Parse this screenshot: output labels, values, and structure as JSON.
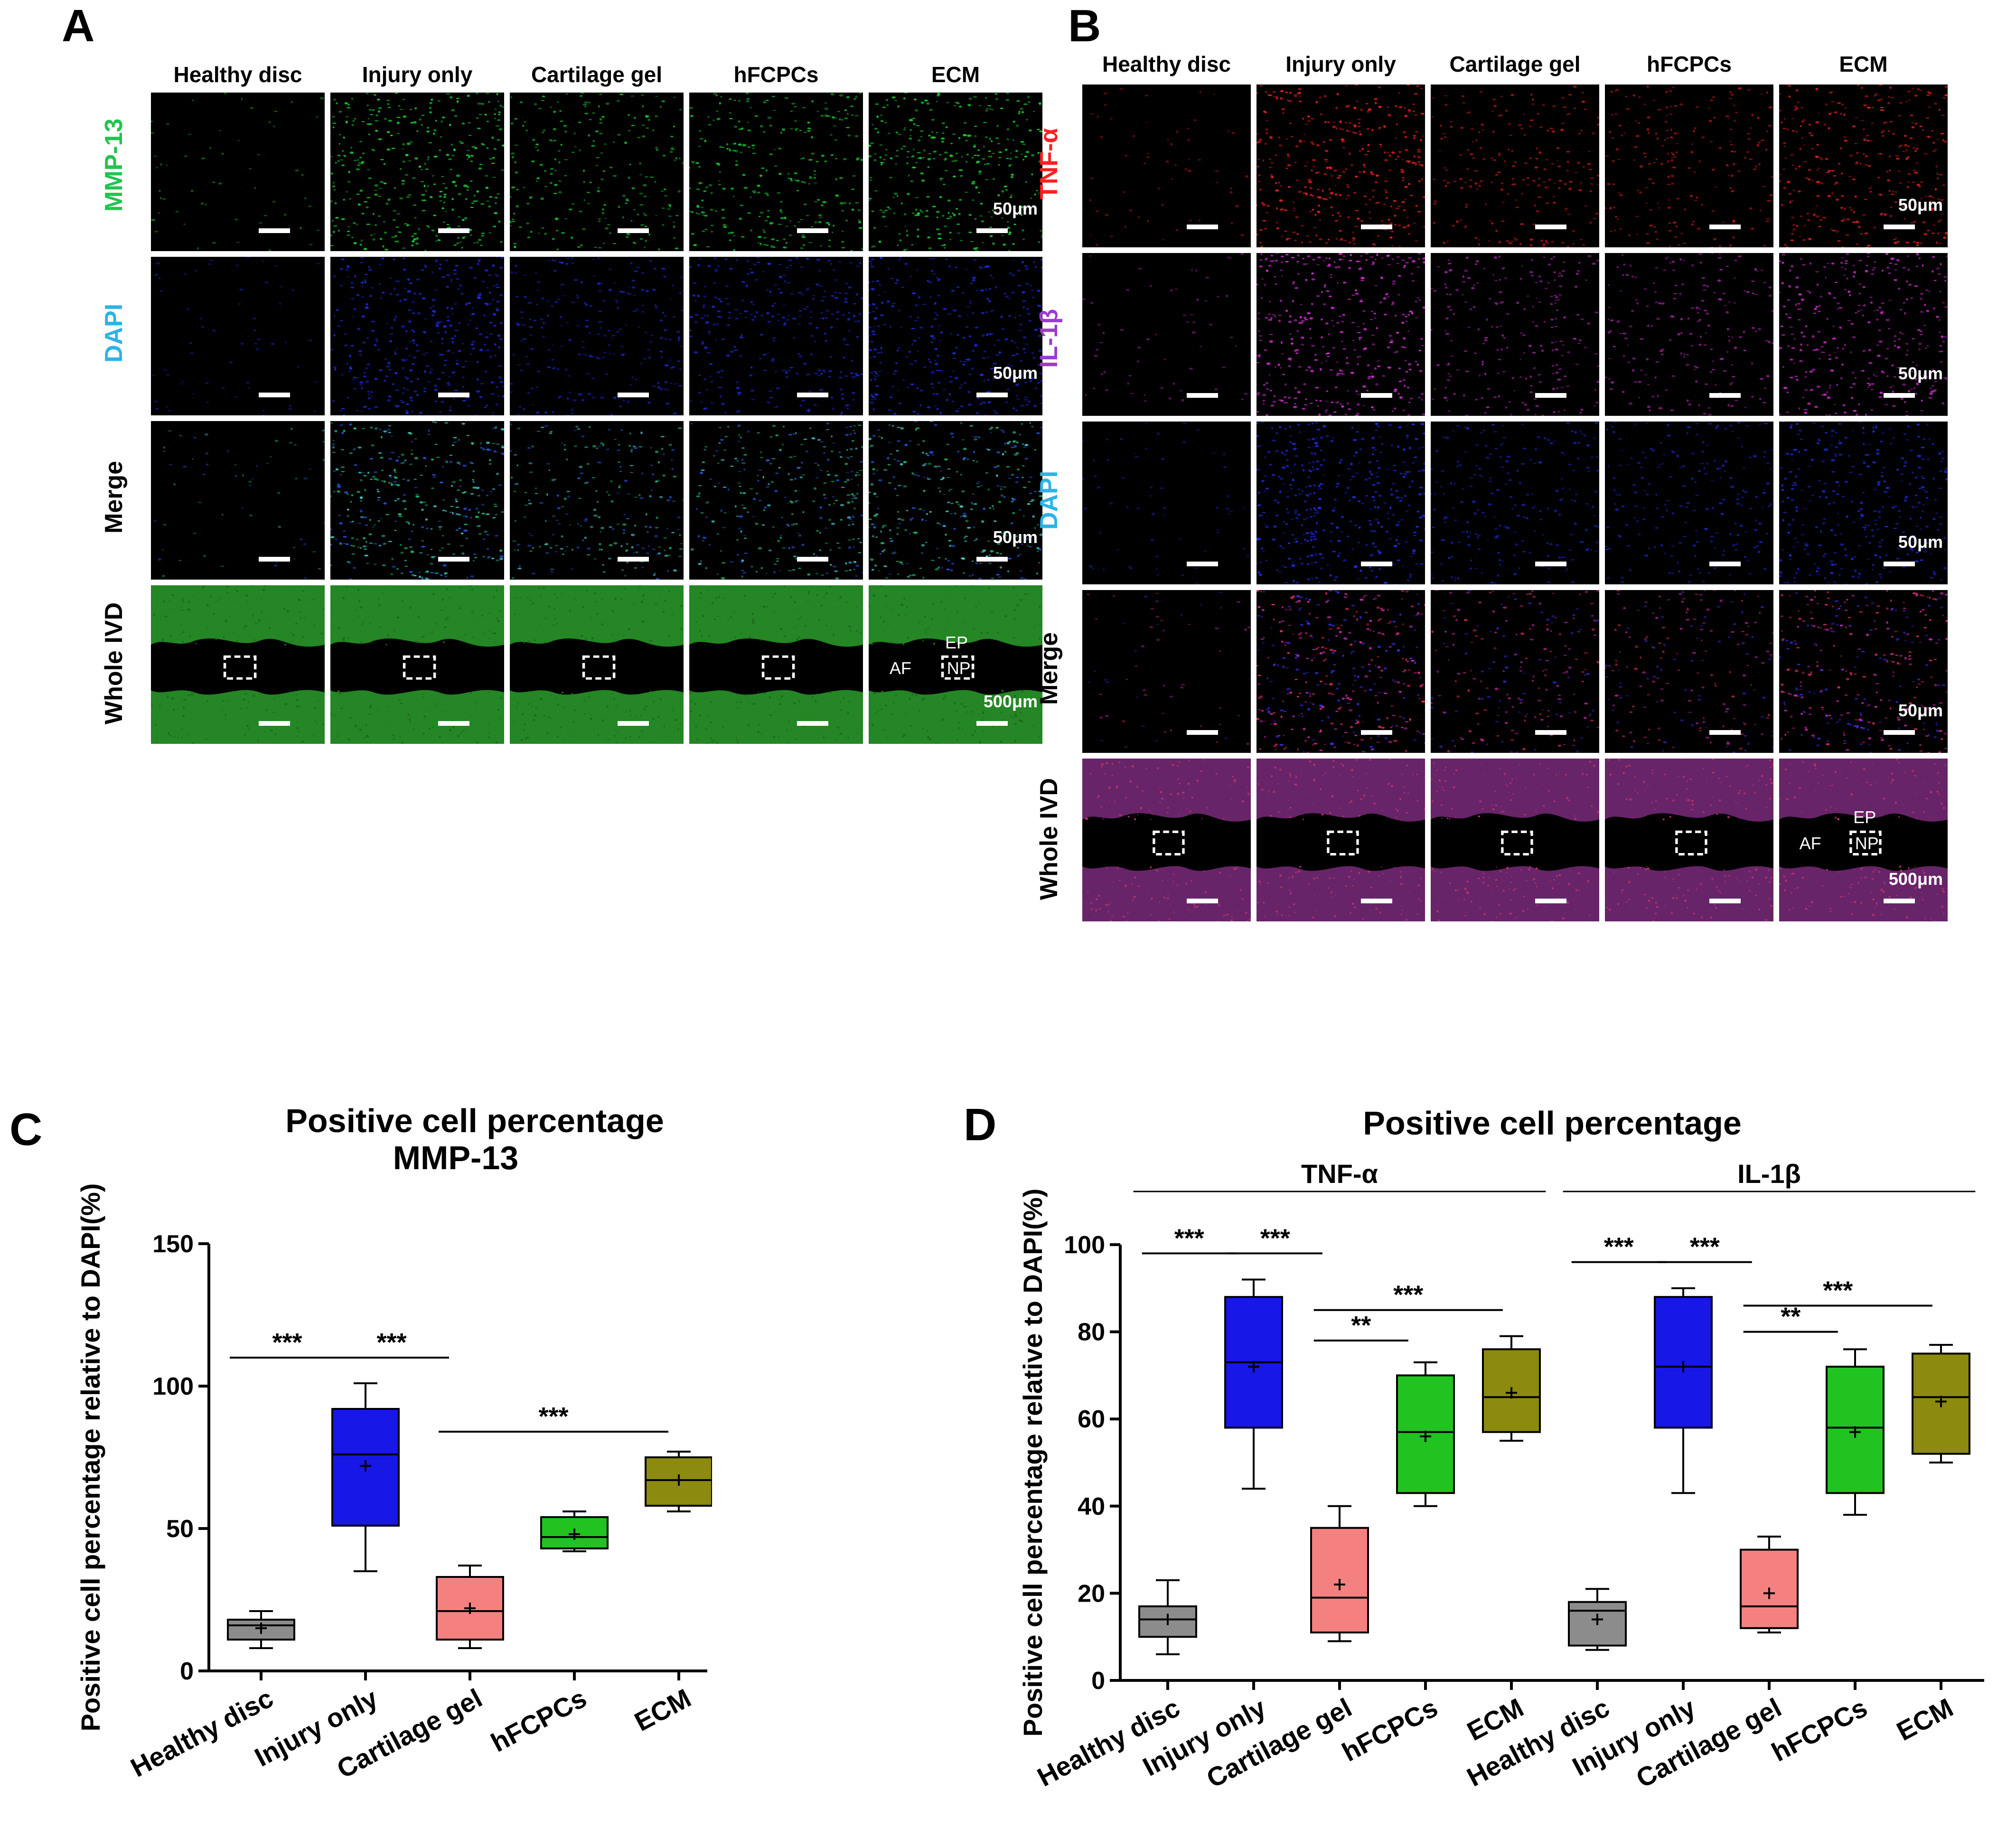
{
  "panel_a": {
    "letter": "A",
    "columns": [
      "Healthy disc",
      "Injury only",
      "Cartilage gel",
      "hFCPCs",
      "ECM"
    ],
    "rows": [
      {
        "label": "MMP-13",
        "color": "#22c34f",
        "scale": "50μm",
        "tone": "green"
      },
      {
        "label": "DAPI",
        "color": "#2bb3e8",
        "scale": "50μm",
        "tone": "blue"
      },
      {
        "label": "Merge",
        "color": "#000000",
        "scale": "50μm",
        "tone": "greenblue"
      },
      {
        "label": "Whole IVD",
        "color": "#000000",
        "scale": "500μm",
        "tone": "whole-green"
      }
    ],
    "region_labels": {
      "af": "AF",
      "ep": "EP",
      "np": "NP"
    }
  },
  "panel_b": {
    "letter": "B",
    "columns": [
      "Healthy disc",
      "Injury only",
      "Cartilage gel",
      "hFCPCs",
      "ECM"
    ],
    "rows": [
      {
        "label": "TNF-α",
        "color": "#ff2020",
        "scale": "50μm",
        "tone": "red"
      },
      {
        "label": "IL-1β",
        "color": "#9b3ccc",
        "scale": "50μm",
        "tone": "magenta"
      },
      {
        "label": "DAPI",
        "color": "#2bb3e8",
        "scale": "50μm",
        "tone": "blue"
      },
      {
        "label": "Merge",
        "color": "#000000",
        "scale": "50μm",
        "tone": "redblue"
      },
      {
        "label": "Whole IVD",
        "color": "#000000",
        "scale": "500μm",
        "tone": "whole-purple"
      }
    ],
    "region_labels": {
      "af": "AF",
      "ep": "EP",
      "np": "NP"
    }
  },
  "panel_c": {
    "letter": "C"
  },
  "panel_d": {
    "letter": "D"
  },
  "chart_data": [
    {
      "type": "box",
      "title": "Positive cell percentage",
      "subtitle": "MMP-13",
      "ylabel": "Positive cell percentage relative to DAPI(%)",
      "ylim": [
        0,
        150
      ],
      "yticks": [
        0,
        50,
        100,
        150
      ],
      "categories": [
        "Healthy disc",
        "Injury only",
        "Cartilage gel",
        "hFCPCs",
        "ECM"
      ],
      "colors": [
        "#8c8c8c",
        "#1717e6",
        "#f48080",
        "#21c321",
        "#8c8a0f"
      ],
      "boxes": [
        {
          "min": 8,
          "q1": 11,
          "median": 16,
          "q3": 18,
          "max": 21,
          "mean": 15
        },
        {
          "min": 35,
          "q1": 51,
          "median": 76,
          "q3": 92,
          "max": 101,
          "mean": 72
        },
        {
          "min": 8,
          "q1": 11,
          "median": 21,
          "q3": 33,
          "max": 37,
          "mean": 22
        },
        {
          "min": 42,
          "q1": 43,
          "median": 47,
          "q3": 54,
          "max": 56,
          "mean": 48
        },
        {
          "min": 56,
          "q1": 58,
          "median": 67,
          "q3": 75,
          "max": 77,
          "mean": 67
        }
      ],
      "significance": [
        {
          "from": 0,
          "to": 1,
          "y": 110,
          "label": "***"
        },
        {
          "from": 1,
          "to": 2,
          "y": 110,
          "label": "***"
        },
        {
          "from": 2,
          "to": 4,
          "y": 84,
          "label": "***"
        }
      ]
    },
    {
      "type": "box",
      "title": "Positive cell percentage",
      "ylabel": "Positive cell percentage relative to DAPI(%)",
      "ylim": [
        0,
        100
      ],
      "yticks": [
        0,
        20,
        40,
        60,
        80,
        100
      ],
      "groups": [
        {
          "name": "TNF-α",
          "start": 0,
          "end": 4
        },
        {
          "name": "IL-1β",
          "start": 5,
          "end": 9
        }
      ],
      "categories": [
        "Healthy disc",
        "Injury only",
        "Cartilage gel",
        "hFCPCs",
        "ECM",
        "Healthy disc",
        "Injury only",
        "Cartilage gel",
        "hFCPCs",
        "ECM"
      ],
      "colors": [
        "#8c8c8c",
        "#1717e6",
        "#f48080",
        "#21c321",
        "#8c8a0f",
        "#8c8c8c",
        "#1717e6",
        "#f48080",
        "#21c321",
        "#8c8a0f"
      ],
      "boxes": [
        {
          "min": 6,
          "q1": 10,
          "median": 14,
          "q3": 17,
          "max": 23,
          "mean": 14
        },
        {
          "min": 44,
          "q1": 58,
          "median": 73,
          "q3": 88,
          "max": 92,
          "mean": 72
        },
        {
          "min": 9,
          "q1": 11,
          "median": 19,
          "q3": 35,
          "max": 40,
          "mean": 22
        },
        {
          "min": 40,
          "q1": 43,
          "median": 57,
          "q3": 70,
          "max": 73,
          "mean": 56
        },
        {
          "min": 55,
          "q1": 57,
          "median": 65,
          "q3": 76,
          "max": 79,
          "mean": 66
        },
        {
          "min": 7,
          "q1": 8,
          "median": 16,
          "q3": 18,
          "max": 21,
          "mean": 14
        },
        {
          "min": 43,
          "q1": 58,
          "median": 72,
          "q3": 88,
          "max": 90,
          "mean": 72
        },
        {
          "min": 11,
          "q1": 12,
          "median": 17,
          "q3": 30,
          "max": 33,
          "mean": 20
        },
        {
          "min": 38,
          "q1": 43,
          "median": 58,
          "q3": 72,
          "max": 76,
          "mean": 57
        },
        {
          "min": 50,
          "q1": 52,
          "median": 65,
          "q3": 75,
          "max": 77,
          "mean": 64
        }
      ],
      "significance": [
        {
          "from": 0,
          "to": 1,
          "y": 98,
          "label": "***"
        },
        {
          "from": 1,
          "to": 2,
          "y": 98,
          "label": "***"
        },
        {
          "from": 2,
          "to": 3,
          "y": 78,
          "label": "**"
        },
        {
          "from": 2,
          "to": 4,
          "y": 85,
          "label": "***"
        },
        {
          "from": 5,
          "to": 6,
          "y": 96,
          "label": "***"
        },
        {
          "from": 6,
          "to": 7,
          "y": 96,
          "label": "***"
        },
        {
          "from": 7,
          "to": 8,
          "y": 80,
          "label": "**"
        },
        {
          "from": 7,
          "to": 9,
          "y": 86,
          "label": "***"
        }
      ]
    }
  ]
}
